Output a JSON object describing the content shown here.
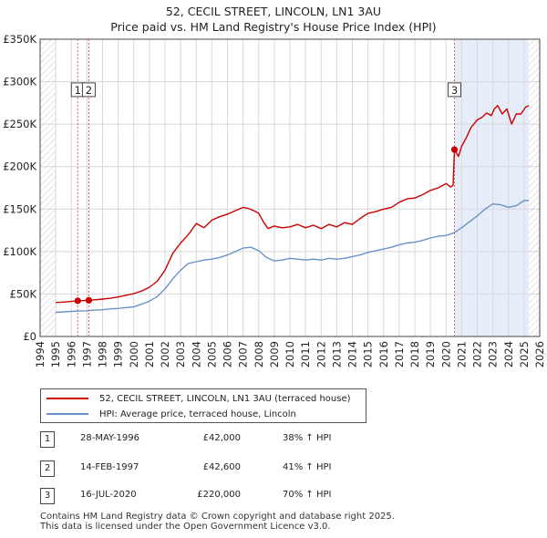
{
  "title": {
    "line1": "52, CECIL STREET, LINCOLN, LN1 3AU",
    "line2": "Price paid vs. HM Land Registry's House Price Index (HPI)"
  },
  "colors": {
    "property": "#cc0000",
    "hpi": "#6a93c8",
    "shade": "#e6edf8",
    "vline": "#d66a6a"
  },
  "chart_data": {
    "type": "line",
    "title": "Price paid vs. HM Land Registry's House Price Index (HPI)",
    "xlim": [
      1994,
      2026
    ],
    "ylim": [
      0,
      350000
    ],
    "x_ticks": [
      "1994",
      "1995",
      "1996",
      "1997",
      "1998",
      "1999",
      "2000",
      "2001",
      "2002",
      "2003",
      "2004",
      "2005",
      "2006",
      "2007",
      "2008",
      "2009",
      "2010",
      "2011",
      "2012",
      "2013",
      "2014",
      "2015",
      "2016",
      "2017",
      "2018",
      "2019",
      "2020",
      "2021",
      "2022",
      "2023",
      "2024",
      "2025",
      "2026"
    ],
    "y_ticks": [
      {
        "value": 0,
        "label": "£0"
      },
      {
        "value": 50000,
        "label": "£50K"
      },
      {
        "value": 100000,
        "label": "£100K"
      },
      {
        "value": 150000,
        "label": "£150K"
      },
      {
        "value": 200000,
        "label": "£200K"
      },
      {
        "value": 250000,
        "label": "£250K"
      },
      {
        "value": 300000,
        "label": "£300K"
      },
      {
        "value": 350000,
        "label": "£350K"
      }
    ],
    "shaded_range": [
      2020.54,
      2025.3
    ],
    "series": [
      {
        "name": "52, CECIL STREET, LINCOLN, LN1 3AU (terraced house)",
        "color": "#cc0000",
        "x": [
          1995.0,
          1995.5,
          1996.0,
          1996.41,
          1996.8,
          1997.12,
          1997.5,
          1998.0,
          1998.5,
          1999.0,
          1999.5,
          2000.0,
          2000.5,
          2001.0,
          2001.5,
          2002.0,
          2002.5,
          2003.0,
          2003.5,
          2004.0,
          2004.5,
          2005.0,
          2005.5,
          2006.0,
          2006.5,
          2007.0,
          2007.3,
          2007.7,
          2008.0,
          2008.3,
          2008.6,
          2009.0,
          2009.5,
          2010.0,
          2010.5,
          2011.0,
          2011.5,
          2012.0,
          2012.5,
          2013.0,
          2013.5,
          2014.0,
          2014.5,
          2015.0,
          2015.5,
          2016.0,
          2016.5,
          2017.0,
          2017.5,
          2018.0,
          2018.5,
          2019.0,
          2019.5,
          2020.0,
          2020.3,
          2020.45,
          2020.54,
          2020.8,
          2021.0,
          2021.3,
          2021.6,
          2022.0,
          2022.3,
          2022.6,
          2022.9,
          2023.1,
          2023.3,
          2023.6,
          2023.9,
          2024.2,
          2024.5,
          2024.8,
          2025.1,
          2025.3
        ],
        "values": [
          40000,
          40500,
          41200,
          42000,
          42300,
          42600,
          43200,
          44000,
          45000,
          46500,
          48500,
          50500,
          53500,
          58000,
          65000,
          78000,
          98000,
          110000,
          120000,
          133000,
          128000,
          137000,
          141000,
          144000,
          148000,
          152000,
          151000,
          148000,
          145000,
          135000,
          127000,
          130000,
          128000,
          129000,
          132000,
          128000,
          131000,
          127000,
          132000,
          129000,
          134000,
          132000,
          139000,
          145000,
          147000,
          150000,
          152000,
          158000,
          162000,
          163000,
          167000,
          172000,
          175000,
          180000,
          176000,
          178000,
          220000,
          212000,
          224000,
          234000,
          246000,
          255000,
          258000,
          263000,
          260000,
          268000,
          272000,
          262000,
          268000,
          250000,
          262000,
          262000,
          270000,
          272000
        ]
      },
      {
        "name": "HPI: Average price, terraced house, Lincoln",
        "color": "#6a93c8",
        "x": [
          1995.0,
          1995.5,
          1996.0,
          1996.5,
          1997.0,
          1997.5,
          1998.0,
          1998.5,
          1999.0,
          1999.5,
          2000.0,
          2000.5,
          2001.0,
          2001.5,
          2002.0,
          2002.5,
          2003.0,
          2003.5,
          2004.0,
          2004.5,
          2005.0,
          2005.5,
          2006.0,
          2006.5,
          2007.0,
          2007.5,
          2008.0,
          2008.5,
          2009.0,
          2009.5,
          2010.0,
          2010.5,
          2011.0,
          2011.5,
          2012.0,
          2012.5,
          2013.0,
          2013.5,
          2014.0,
          2014.5,
          2015.0,
          2015.5,
          2016.0,
          2016.5,
          2017.0,
          2017.5,
          2018.0,
          2018.5,
          2019.0,
          2019.5,
          2020.0,
          2020.5,
          2021.0,
          2021.5,
          2022.0,
          2022.5,
          2023.0,
          2023.5,
          2024.0,
          2024.5,
          2025.0,
          2025.3
        ],
        "values": [
          28500,
          29000,
          29500,
          30000,
          30300,
          31000,
          31500,
          32500,
          33000,
          34000,
          35000,
          38000,
          41500,
          47000,
          56000,
          68000,
          78000,
          86000,
          88000,
          90000,
          91000,
          93000,
          96000,
          100000,
          104000,
          105000,
          101000,
          93000,
          89000,
          90000,
          92000,
          91000,
          90000,
          91000,
          90000,
          92000,
          91000,
          92000,
          94000,
          96000,
          99000,
          101000,
          103000,
          105000,
          108000,
          110000,
          111000,
          113000,
          116000,
          118000,
          119000,
          122000,
          128000,
          135000,
          142000,
          150000,
          156000,
          155000,
          152000,
          154000,
          160000,
          160000
        ]
      }
    ],
    "sales": [
      {
        "label": "1",
        "x": 1996.41,
        "value": 42000
      },
      {
        "label": "2",
        "x": 1997.12,
        "value": 42600
      },
      {
        "label": "3",
        "x": 2020.54,
        "value": 220000
      }
    ],
    "sale_label_values": [
      290000,
      290000,
      290000
    ]
  },
  "legend": {
    "property": "52, CECIL STREET, LINCOLN, LN1 3AU (terraced house)",
    "hpi": "HPI: Average price, terraced house, Lincoln"
  },
  "transactions": [
    {
      "num": "1",
      "date": "28-MAY-1996",
      "price": "£42,000",
      "hpi": "38% ↑ HPI"
    },
    {
      "num": "2",
      "date": "14-FEB-1997",
      "price": "£42,600",
      "hpi": "41% ↑ HPI"
    },
    {
      "num": "3",
      "date": "16-JUL-2020",
      "price": "£220,000",
      "hpi": "70% ↑ HPI"
    }
  ],
  "footer": {
    "line1": "Contains HM Land Registry data © Crown copyright and database right 2025.",
    "line2": "This data is licensed under the Open Government Licence v3.0."
  }
}
